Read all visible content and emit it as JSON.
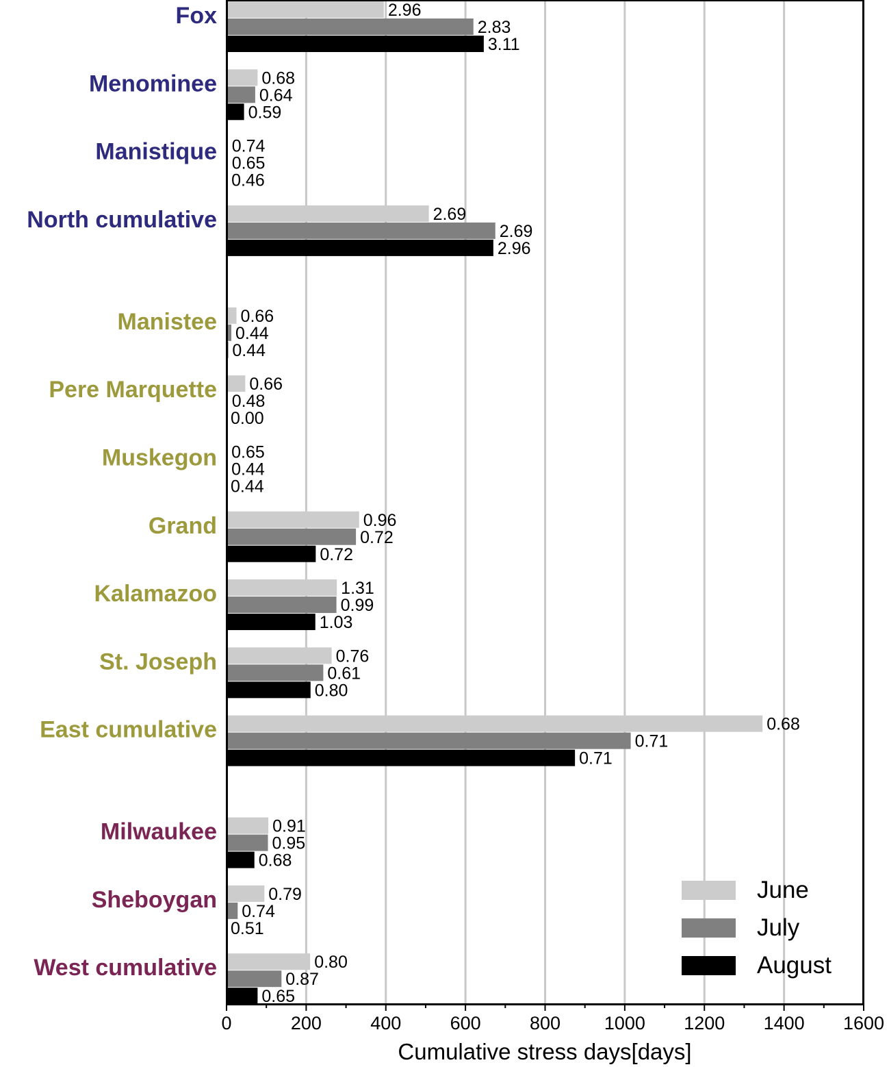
{
  "chart_data": {
    "type": "bar",
    "orientation": "horizontal",
    "xlabel": "Cumulative stress days[days]",
    "xlim": [
      0,
      1600
    ],
    "xticks": [
      "0",
      "200",
      "400",
      "600",
      "800",
      "1000",
      "1200",
      "1400",
      "1600"
    ],
    "grid": "vertical",
    "legend_position": "bottom-right",
    "group_colors": {
      "north": "#2e2a7e",
      "east": "#9c9a3c",
      "west": "#7a2553"
    },
    "series_colors": {
      "June": "#cccccc",
      "July": "#808080",
      "August": "#000000"
    },
    "categories": [
      {
        "name": "Fox",
        "group": "north",
        "slot": 0
      },
      {
        "name": "Menominee",
        "group": "north",
        "slot": 1
      },
      {
        "name": "Manistique",
        "group": "north",
        "slot": 2
      },
      {
        "name": "North cumulative",
        "group": "north",
        "slot": 3
      },
      {
        "name": "Manistee",
        "group": "east",
        "slot": 4.5
      },
      {
        "name": "Pere Marquette",
        "group": "east",
        "slot": 5.5
      },
      {
        "name": "Muskegon",
        "group": "east",
        "slot": 6.5
      },
      {
        "name": "Grand",
        "group": "east",
        "slot": 7.5
      },
      {
        "name": "Kalamazoo",
        "group": "east",
        "slot": 8.5
      },
      {
        "name": "St. Joseph",
        "group": "east",
        "slot": 9.5
      },
      {
        "name": "East cumulative",
        "group": "east",
        "slot": 10.5
      },
      {
        "name": "Milwaukee",
        "group": "west",
        "slot": 12
      },
      {
        "name": "Sheboygan",
        "group": "west",
        "slot": 13
      },
      {
        "name": "West cumulative",
        "group": "west",
        "slot": 14
      }
    ],
    "series": [
      {
        "name": "June",
        "values": [
          395,
          78,
          3,
          508,
          25,
          47,
          2,
          333,
          277,
          264,
          1346,
          105,
          95,
          210
        ],
        "labels": [
          "2.96",
          "0.68",
          "0.74",
          "2.69",
          "0.66",
          "0.66",
          "0.65",
          "0.96",
          "1.31",
          "0.76",
          "0.68",
          "0.91",
          "0.79",
          "0.80"
        ]
      },
      {
        "name": "July",
        "values": [
          620,
          72,
          3,
          675,
          12,
          3,
          2,
          325,
          276,
          243,
          1015,
          104,
          28,
          138
        ],
        "labels": [
          "2.83",
          "0.64",
          "0.65",
          "2.69",
          "0.44",
          "0.48",
          "0.44",
          "0.72",
          "0.99",
          "0.61",
          "0.71",
          "0.95",
          "0.74",
          "0.87"
        ]
      },
      {
        "name": "August",
        "values": [
          646,
          44,
          2,
          670,
          4,
          0,
          0,
          224,
          223,
          211,
          875,
          70,
          0,
          78
        ],
        "labels": [
          "3.11",
          "0.59",
          "0.46",
          "2.96",
          "0.44",
          "0.00",
          "0.44",
          "0.72",
          "1.03",
          "0.80",
          "0.71",
          "0.68",
          "0.51",
          "0.65"
        ]
      }
    ]
  }
}
